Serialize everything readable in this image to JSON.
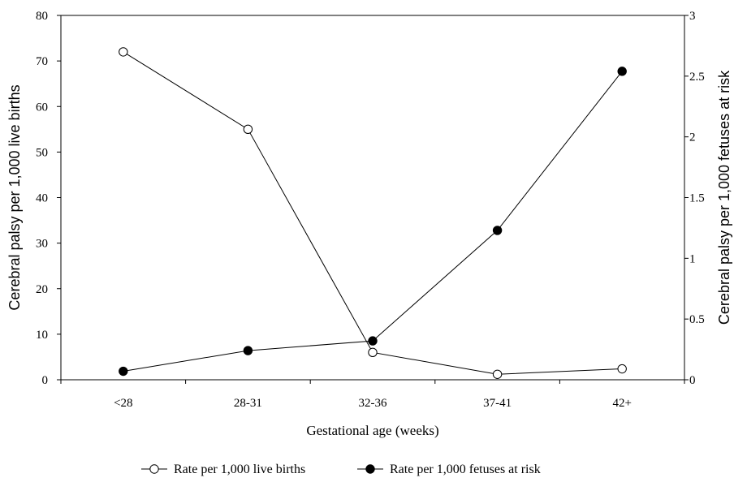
{
  "chart_data": {
    "type": "line",
    "categories": [
      "<28",
      "28-31",
      "32-36",
      "37-41",
      "42+"
    ],
    "xlabel": "Gestational age (weeks)",
    "ylabel_left": "Cerebral palsy per 1,000 live births",
    "ylabel_right": "Cerebral palsy per 1,000 fetuses at risk",
    "ylim_left": [
      0,
      80
    ],
    "yticks_left": [
      "0",
      "10",
      "20",
      "30",
      "40",
      "50",
      "60",
      "70",
      "80"
    ],
    "ylim_right": [
      0,
      3
    ],
    "yticks_right": [
      "0",
      "0.5",
      "1",
      "1.5",
      "2",
      "2.5",
      "3"
    ],
    "grid": false,
    "legend_position": "bottom",
    "series": [
      {
        "name": "Rate per 1,000 live births",
        "axis": "left",
        "marker": "open-circle",
        "values": [
          72,
          55,
          6,
          1.2,
          2.4
        ]
      },
      {
        "name": "Rate per 1,000 fetuses at risk",
        "axis": "right",
        "marker": "filled-circle",
        "values": [
          0.07,
          0.24,
          0.32,
          1.23,
          2.54
        ]
      }
    ]
  }
}
